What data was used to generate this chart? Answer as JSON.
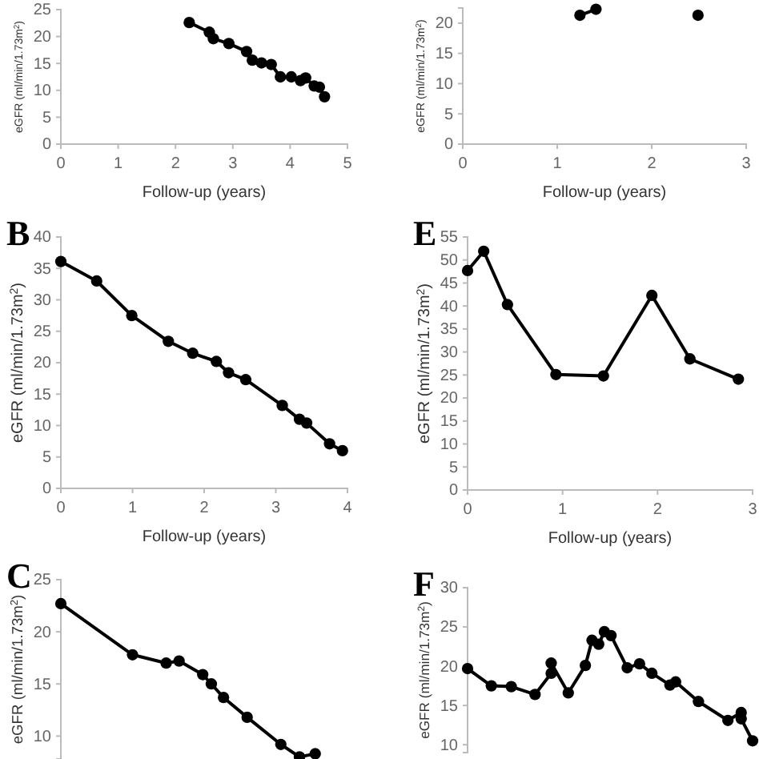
{
  "chart_data": [
    {
      "type": "line",
      "xlabel": "Follow-up (years)",
      "ylabel": "eGFR (ml/min/1.73m$^{2}$)",
      "xlim": [
        0,
        5
      ],
      "xticks": [
        0,
        1,
        2,
        3,
        4,
        5
      ],
      "ylim": [
        0,
        25
      ],
      "yticks": [
        0,
        5,
        10,
        15,
        20,
        25
      ],
      "marker": "circle",
      "series": [
        {
          "color": "#000000",
          "x": [
            2.24,
            2.59,
            2.66,
            2.93,
            3.24,
            3.34,
            3.5,
            3.67,
            3.83,
            4.02,
            4.18,
            4.27,
            4.42,
            4.51,
            4.6
          ],
          "values": [
            22.6,
            20.8,
            19.6,
            18.7,
            17.2,
            15.6,
            15.1,
            14.8,
            12.5,
            12.5,
            11.8,
            12.3,
            10.8,
            10.6,
            8.8
          ]
        }
      ]
    },
    {
      "type": "line",
      "xlabel": "Follow-up (years)",
      "ylabel": "eGFR (ml/min/1.73m$^{2}$)",
      "xlim": [
        0,
        3
      ],
      "xticks": [
        0,
        1,
        2,
        3
      ],
      "ylim": [
        0,
        22.5
      ],
      "yticks": [
        0,
        5,
        10,
        15,
        20
      ],
      "marker": "circle",
      "series": [
        {
          "color": "#000000",
          "x": [
            1.24,
            1.41,
            2.0,
            2.49
          ],
          "values": [
            21.3,
            22.3,
            null,
            21.3
          ]
        }
      ]
    },
    {
      "type": "line",
      "title": "B",
      "xlabel": "Follow-up (years)",
      "ylabel": "eGFR (ml/min/1.73m$^{2}$)",
      "xlim": [
        0,
        4
      ],
      "xticks": [
        0,
        1,
        2,
        3,
        4
      ],
      "ylim": [
        0,
        40
      ],
      "yticks": [
        0,
        5,
        10,
        15,
        20,
        25,
        30,
        35,
        40
      ],
      "marker": "circle",
      "series": [
        {
          "color": "#000000",
          "x": [
            0,
            0.5,
            0.99,
            1.5,
            1.84,
            2.17,
            2.34,
            2.58,
            3.09,
            3.33,
            3.43,
            3.75,
            3.93
          ],
          "values": [
            36.1,
            33.0,
            27.5,
            23.4,
            21.5,
            20.2,
            18.4,
            17.3,
            13.2,
            11.0,
            10.4,
            7.1,
            6.0
          ]
        }
      ]
    },
    {
      "type": "line",
      "title": "E",
      "xlabel": "Follow-up (years)",
      "ylabel": "eGFR (ml/min/1.73m$^{2}$)",
      "xlim": [
        0,
        3
      ],
      "xticks": [
        0,
        1,
        2,
        3
      ],
      "ylim": [
        0,
        55
      ],
      "yticks": [
        0,
        5,
        10,
        15,
        20,
        25,
        30,
        35,
        40,
        45,
        50,
        55
      ],
      "marker": "circle",
      "series": [
        {
          "color": "#000000",
          "x": [
            0,
            0.17,
            0.42,
            0.93,
            1.43,
            1.94,
            2.34,
            2.85
          ],
          "values": [
            47.7,
            51.9,
            40.3,
            25.1,
            24.8,
            42.3,
            28.5,
            24.1
          ]
        }
      ]
    },
    {
      "type": "line",
      "title": "C",
      "ylabel": "eGFR (ml/min/1.73m$^{2}$)",
      "xlim": [
        0,
        4
      ],
      "ylim": [
        7.8,
        25
      ],
      "yticks": [
        10,
        15,
        20,
        25
      ],
      "tick_labels": "y",
      "marker": "circle",
      "series": [
        {
          "color": "#000000",
          "x": [
            0,
            1,
            1.47,
            1.65,
            1.98,
            2.1,
            2.27,
            2.6,
            3.07,
            3.33,
            3.55
          ],
          "values": [
            22.7,
            17.8,
            17.0,
            17.2,
            15.9,
            15.0,
            13.7,
            11.8,
            9.2,
            8.0,
            8.3
          ]
        }
      ]
    },
    {
      "type": "line",
      "title": "F",
      "ylabel": "eGFR (ml/min/1.73m$^{2}$)",
      "xlim": [
        0,
        3
      ],
      "ylim": [
        9,
        30
      ],
      "yticks": [
        10,
        15,
        20,
        25,
        30
      ],
      "tick_labels": "y",
      "marker": "circle",
      "series": [
        {
          "color": "#000000",
          "x": [
            0,
            0.25,
            0.46,
            0.71,
            0.88,
            0.88,
            1.06,
            1.24,
            1.31,
            1.38,
            1.44,
            1.51,
            1.68,
            1.81,
            1.94,
            2.13,
            2.19,
            2.43,
            2.74,
            2.88,
            2.88,
            3.0
          ],
          "values": [
            19.7,
            17.5,
            17.4,
            16.4,
            19.1,
            20.4,
            16.6,
            20.1,
            23.3,
            22.8,
            24.4,
            23.9,
            19.8,
            20.3,
            19.1,
            17.6,
            18.0,
            15.5,
            13.1,
            14.1,
            13.3,
            10.5
          ]
        }
      ]
    }
  ]
}
